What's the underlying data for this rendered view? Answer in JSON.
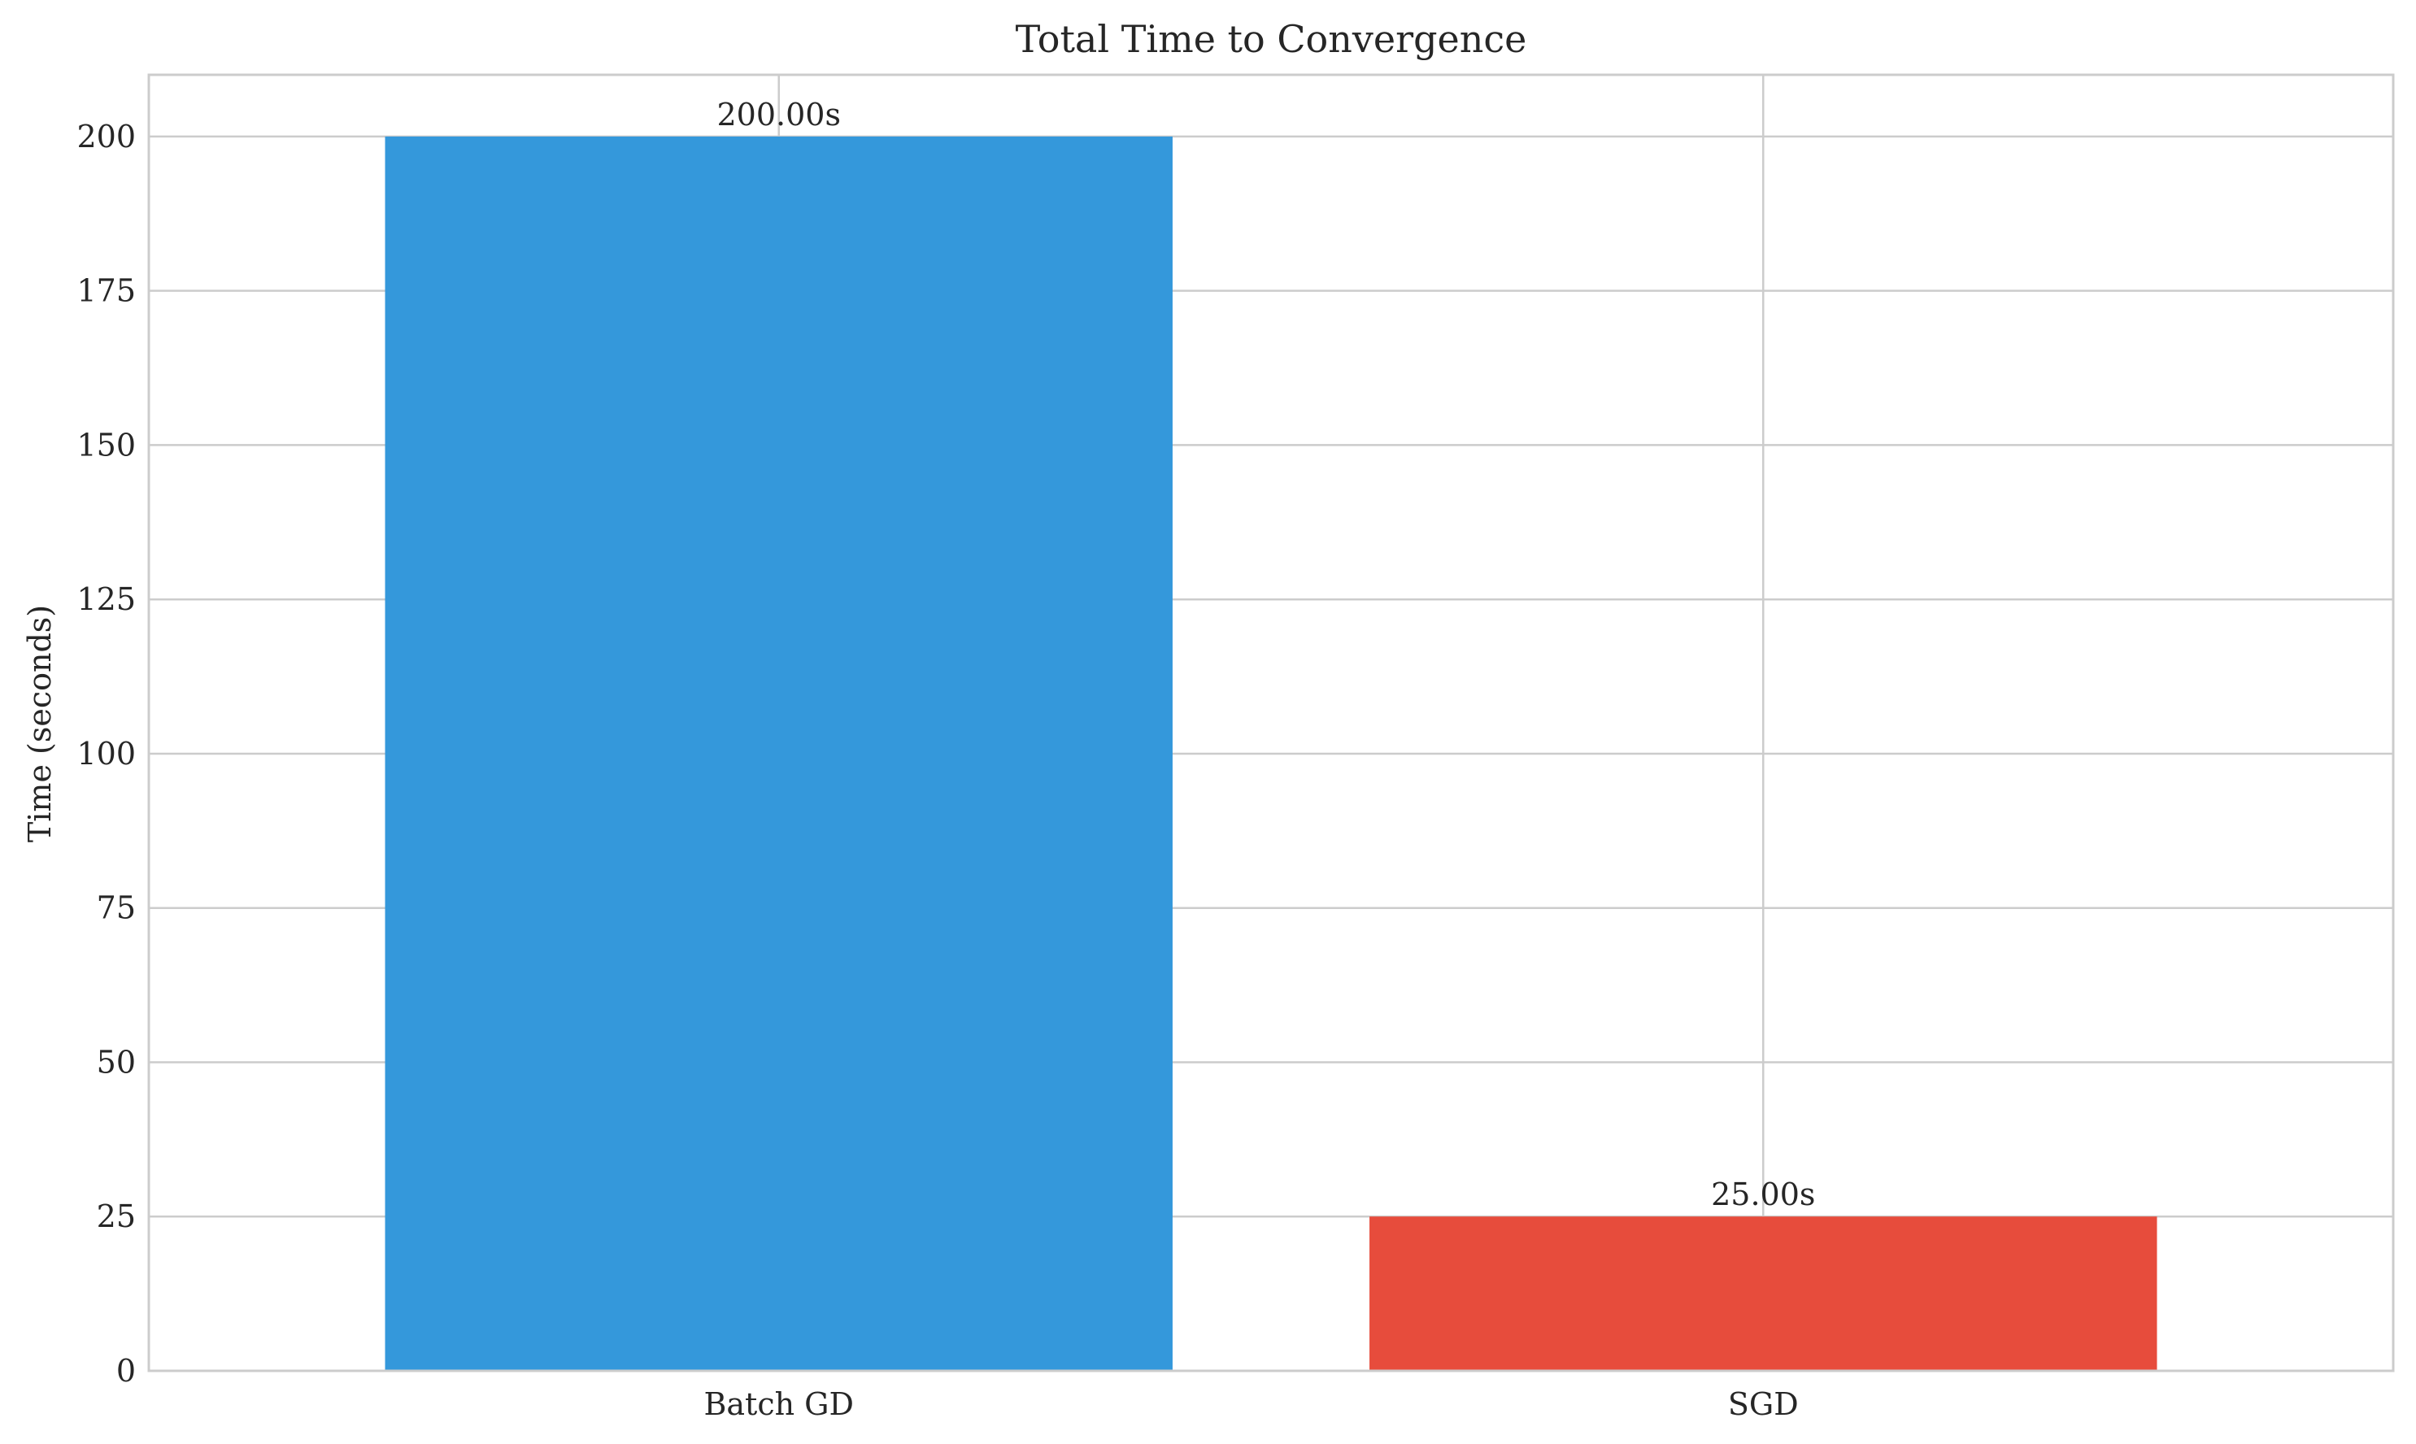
{
  "chart_data": {
    "type": "bar",
    "title": "Total Time to Convergence",
    "xlabel": "",
    "ylabel": "Time (seconds)",
    "categories": [
      "Batch GD",
      "SGD"
    ],
    "values": [
      200.0,
      25.0
    ],
    "value_labels": [
      "200.00s",
      "25.00s"
    ],
    "colors": [
      "#3498db",
      "#e74c3c"
    ],
    "ylim": [
      0,
      210
    ],
    "yticks": [
      0,
      25,
      50,
      75,
      100,
      125,
      150,
      175,
      200
    ],
    "grid": true,
    "legend": "none"
  }
}
